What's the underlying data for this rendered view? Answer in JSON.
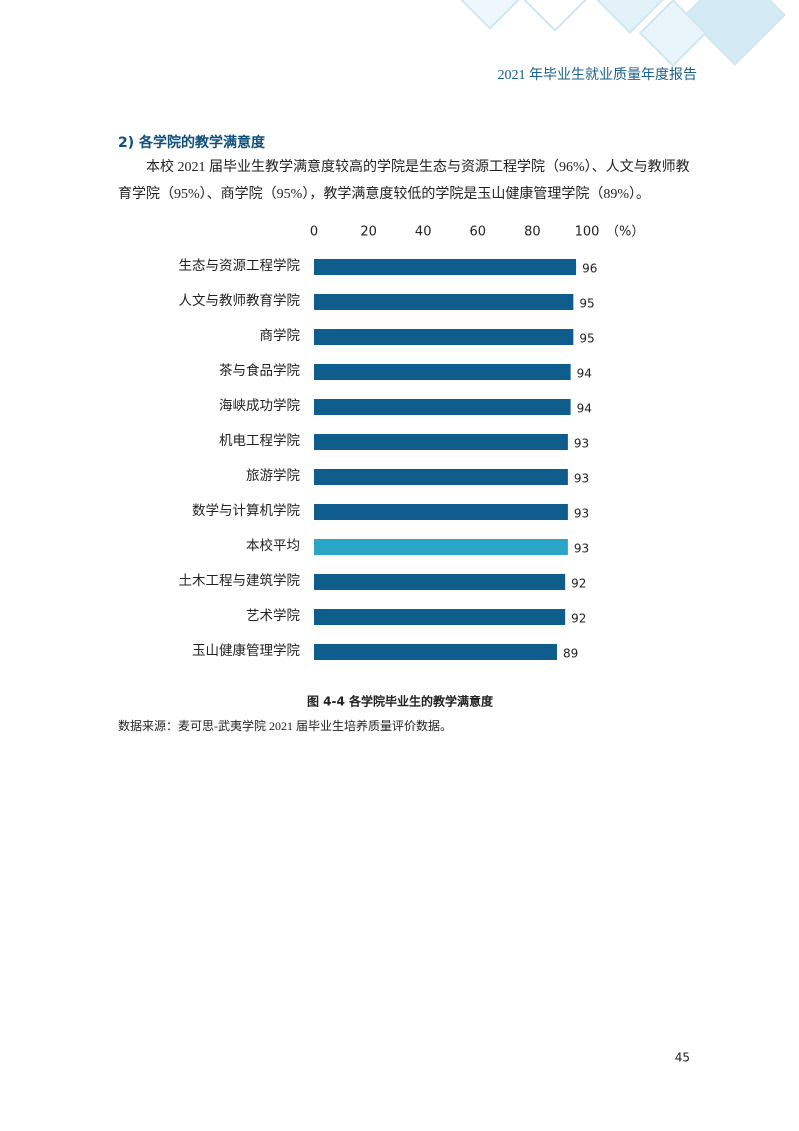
{
  "header": {
    "title": "2021 年毕业生就业质量年度报告"
  },
  "section": {
    "heading": "2)  各学院的教学满意度",
    "paragraph": [
      "本校 2021 届毕业生教学满意度较高的学院是生态与资源工程学院（96%）、人文与教师教",
      "育学院（95%）、商学院（95%），教学满意度较低的学院是玉山健康管理学院（89%）。"
    ]
  },
  "chart_data": {
    "type": "hbar",
    "categories": [
      "生态与资源工程学院",
      "人文与教师教育学院",
      "商学院",
      "茶与食品学院",
      "海峡成功学院",
      "机电工程学院",
      "旅游学院",
      "数学与计算机学院",
      "本校平均",
      "土木工程与建筑学院",
      "艺术学院",
      "玉山健康管理学院"
    ],
    "values": [
      96,
      95,
      95,
      94,
      94,
      93,
      93,
      93,
      93,
      92,
      92,
      89
    ],
    "colors": [
      "#0f5d8c",
      "#0f5d8c",
      "#0f5d8c",
      "#0f5d8c",
      "#0f5d8c",
      "#0f5d8c",
      "#0f5d8c",
      "#0f5d8c",
      "#2ba5c6",
      "#0f5d8c",
      "#0f5d8c",
      "#0f5d8c"
    ],
    "xlim": [
      0,
      100
    ],
    "xticks": [
      0,
      20,
      40,
      60,
      80,
      100
    ],
    "x_unit": "（%）",
    "grid": false
  },
  "caption": "图 4-4     各学院毕业生的教学满意度",
  "source": "数据来源：麦可思-武夷学院 2021 届毕业生培养质量评价数据。",
  "page_number": "45"
}
